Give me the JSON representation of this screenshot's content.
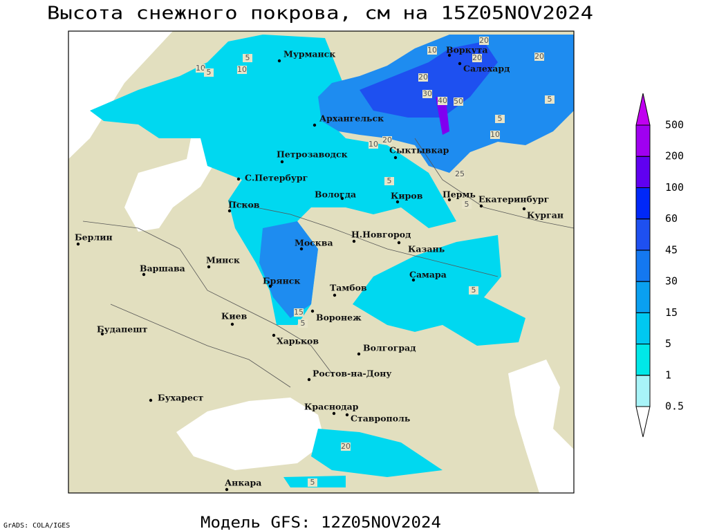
{
  "title": "Высота снежного покрова, см на 15Z05NOV2024",
  "footer": "Модель GFS: 12Z05NOV2024",
  "credit": "GrADS: COLA/IGES",
  "cities": [
    "Мурманск",
    "Воркута",
    "Салехард",
    "Архангельск",
    "Сыктывкар",
    "Петрозаводск",
    "С.Петербург",
    "Вологда",
    "Киров",
    "Пермь",
    "Екатеринбург",
    "Курган",
    "Псков",
    "Берлин",
    "Н.Новгород",
    "Казань",
    "Москва",
    "Минск",
    "Варшава",
    "Самара",
    "Брянск",
    "Тамбов",
    "Воронеж",
    "Киев",
    "Будапешт",
    "Харьков",
    "Волгоград",
    "Ростов-на-Дону",
    "Бухарест",
    "Краснодар",
    "Ставрополь",
    "Анкара"
  ],
  "contour_labels": [
    10,
    20,
    20,
    20,
    10,
    5,
    10,
    5,
    20,
    30,
    40,
    50,
    5,
    5,
    10,
    20,
    10,
    25,
    5,
    5,
    5,
    15,
    5,
    20,
    5
  ],
  "legend": {
    "levels": [
      0.5,
      1,
      5,
      15,
      30,
      45,
      60,
      100,
      200,
      500
    ],
    "colors": [
      "#a8f4f8",
      "#00e8e8",
      "#00c8f0",
      "#0aa0f0",
      "#1478f0",
      "#1e50f0",
      "#0028f8",
      "#6000f0",
      "#a000f0"
    ],
    "over_color": "#c000f0",
    "under_color": "#ffffff"
  }
}
